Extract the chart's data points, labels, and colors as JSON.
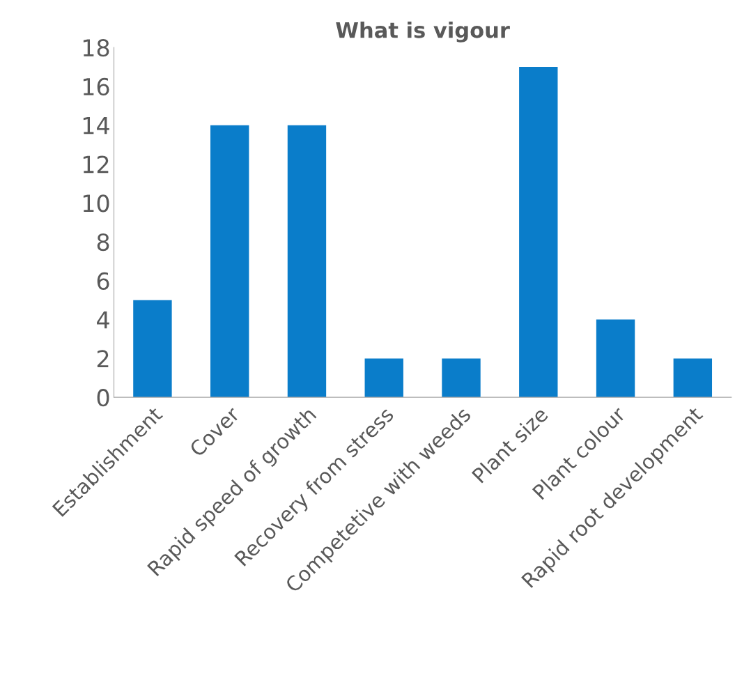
{
  "chart_data": {
    "type": "bar",
    "title": "What is vigour",
    "categories": [
      "Establishment",
      "Cover",
      "Rapid speed of growth",
      "Recovery from stress",
      "Competetive with weeds",
      "Plant size",
      "Plant colour",
      "Rapid root development"
    ],
    "values": [
      5,
      14,
      14,
      2,
      2,
      17,
      4,
      2
    ],
    "color": "#0a7dca",
    "ylim": [
      0,
      18
    ],
    "yticks": [
      0,
      2,
      4,
      6,
      8,
      10,
      12,
      14,
      16,
      18
    ],
    "grid": false,
    "legend": false
  }
}
